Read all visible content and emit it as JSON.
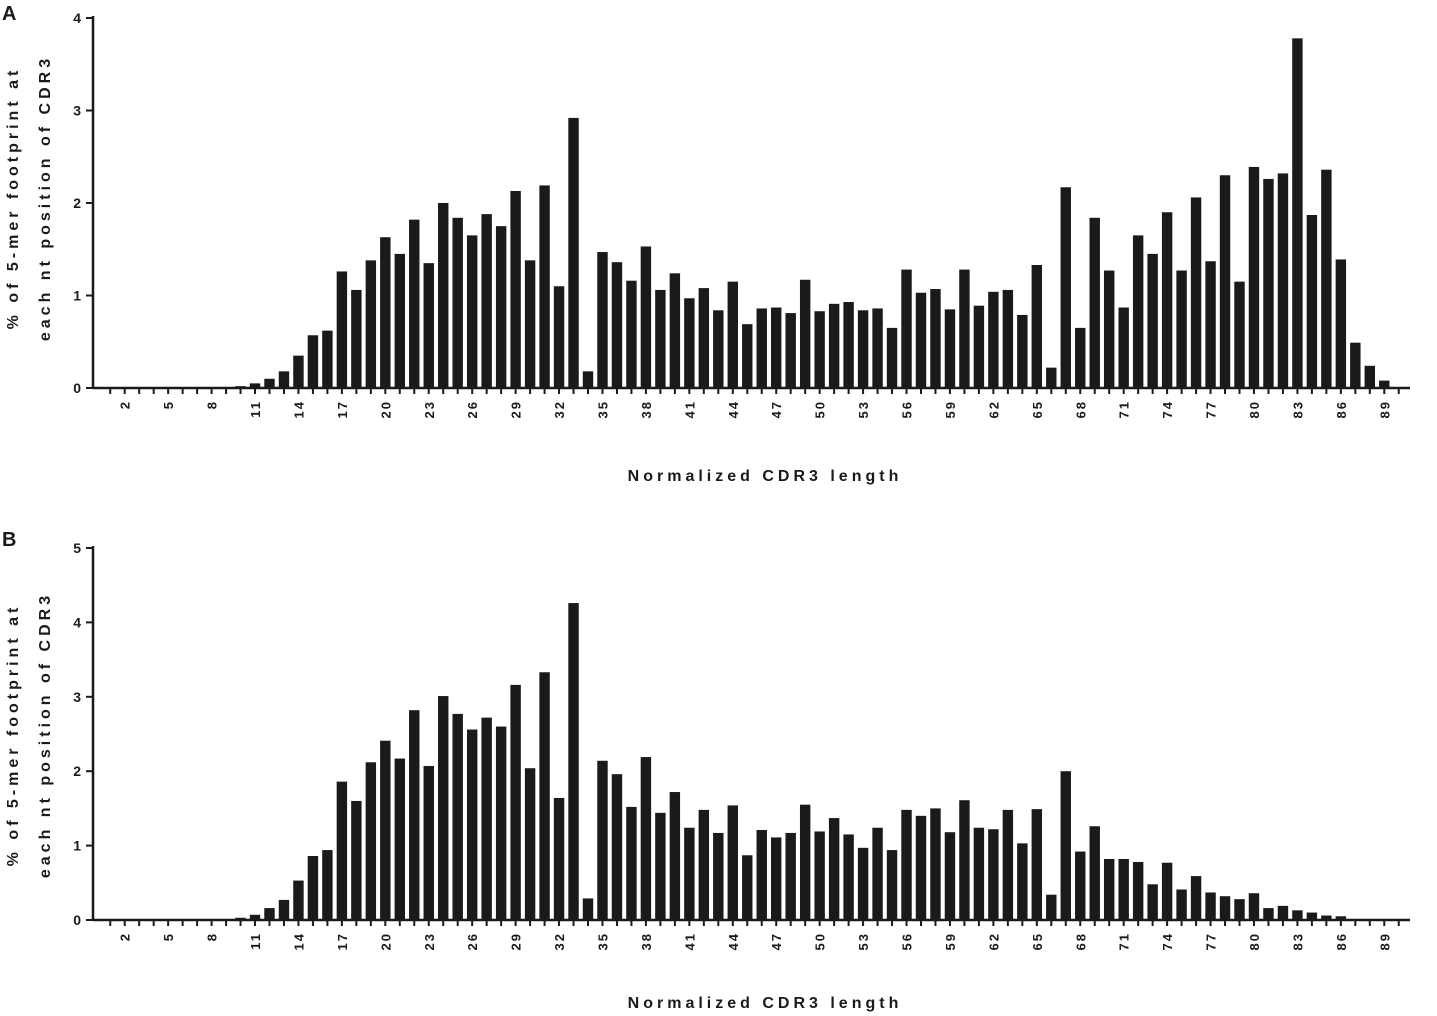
{
  "chart_data": [
    {
      "panel": "A",
      "type": "bar",
      "xlabel": "Normalized CDR3 length",
      "ylabel_lines": [
        "% of 5-mer footprint at",
        "each nt position of CDR3"
      ],
      "ylim": [
        0,
        4
      ],
      "yticks": [
        0,
        1,
        2,
        3,
        4
      ],
      "x": [
        1,
        2,
        3,
        4,
        5,
        6,
        7,
        8,
        9,
        10,
        11,
        12,
        13,
        14,
        15,
        16,
        17,
        18,
        19,
        20,
        21,
        22,
        23,
        24,
        25,
        26,
        27,
        28,
        29,
        30,
        31,
        32,
        33,
        34,
        35,
        36,
        37,
        38,
        39,
        40,
        41,
        42,
        43,
        44,
        45,
        46,
        47,
        48,
        49,
        50,
        51,
        52,
        53,
        54,
        55,
        56,
        57,
        58,
        59,
        60,
        61,
        62,
        63,
        64,
        65,
        66,
        67,
        68,
        69,
        70,
        71,
        72,
        73,
        74,
        75,
        76,
        77,
        78,
        79,
        80,
        81,
        82,
        83,
        84,
        85,
        86,
        87,
        88,
        89,
        90
      ],
      "xtick_labels": [
        "2",
        "5",
        "8",
        "11",
        "14",
        "17",
        "20",
        "23",
        "26",
        "29",
        "32",
        "35",
        "38",
        "41",
        "44",
        "47",
        "50",
        "53",
        "56",
        "59",
        "62",
        "65",
        "68",
        "71",
        "74",
        "77",
        "80",
        "83",
        "86",
        "89"
      ],
      "values": [
        0,
        0,
        0,
        0,
        0,
        0,
        0,
        0,
        0,
        0.02,
        0.05,
        0.1,
        0.18,
        0.35,
        0.57,
        0.62,
        1.26,
        1.06,
        1.38,
        1.63,
        1.45,
        1.82,
        1.35,
        2.0,
        1.84,
        1.65,
        1.88,
        1.75,
        2.13,
        1.38,
        2.19,
        1.1,
        2.92,
        0.18,
        1.47,
        1.36,
        1.16,
        1.53,
        1.06,
        1.24,
        0.97,
        1.08,
        0.84,
        1.15,
        0.69,
        0.86,
        0.87,
        0.81,
        1.17,
        0.83,
        0.91,
        0.93,
        0.84,
        0.86,
        0.65,
        1.28,
        1.03,
        1.07,
        0.85,
        1.28,
        0.89,
        1.04,
        1.06,
        0.79,
        1.33,
        0.22,
        2.17,
        0.65,
        1.84,
        1.27,
        0.87,
        1.65,
        1.45,
        1.9,
        1.27,
        2.06,
        1.37,
        2.3,
        1.15,
        2.39,
        2.26,
        2.32,
        3.78,
        1.87,
        2.36,
        1.39,
        0.49,
        0.24,
        0.08,
        0
      ]
    },
    {
      "panel": "B",
      "type": "bar",
      "xlabel": "Normalized CDR3 length",
      "ylabel_lines": [
        "% of 5-mer footprint at",
        "each nt position of CDR3"
      ],
      "ylim": [
        0,
        5
      ],
      "yticks": [
        0,
        1,
        2,
        3,
        4,
        5
      ],
      "x": [
        1,
        2,
        3,
        4,
        5,
        6,
        7,
        8,
        9,
        10,
        11,
        12,
        13,
        14,
        15,
        16,
        17,
        18,
        19,
        20,
        21,
        22,
        23,
        24,
        25,
        26,
        27,
        28,
        29,
        30,
        31,
        32,
        33,
        34,
        35,
        36,
        37,
        38,
        39,
        40,
        41,
        42,
        43,
        44,
        45,
        46,
        47,
        48,
        49,
        50,
        51,
        52,
        53,
        54,
        55,
        56,
        57,
        58,
        59,
        60,
        61,
        62,
        63,
        64,
        65,
        66,
        67,
        68,
        69,
        70,
        71,
        72,
        73,
        74,
        75,
        76,
        77,
        78,
        79,
        80,
        81,
        82,
        83,
        84,
        85,
        86,
        87,
        88,
        89,
        90
      ],
      "xtick_labels": [
        "2",
        "5",
        "8",
        "11",
        "14",
        "17",
        "20",
        "23",
        "26",
        "29",
        "32",
        "35",
        "38",
        "41",
        "44",
        "47",
        "50",
        "53",
        "56",
        "59",
        "62",
        "65",
        "68",
        "71",
        "74",
        "77",
        "80",
        "83",
        "86",
        "89"
      ],
      "values": [
        0,
        0,
        0,
        0,
        0,
        0,
        0,
        0,
        0,
        0.03,
        0.07,
        0.16,
        0.27,
        0.53,
        0.86,
        0.94,
        1.86,
        1.6,
        2.12,
        2.41,
        2.17,
        2.82,
        2.07,
        3.01,
        2.77,
        2.56,
        2.72,
        2.6,
        3.16,
        2.04,
        3.33,
        1.64,
        4.26,
        0.29,
        2.14,
        1.96,
        1.52,
        2.19,
        1.44,
        1.72,
        1.24,
        1.48,
        1.17,
        1.54,
        0.87,
        1.21,
        1.11,
        1.17,
        1.55,
        1.19,
        1.37,
        1.15,
        0.97,
        1.24,
        0.94,
        1.48,
        1.4,
        1.5,
        1.18,
        1.61,
        1.24,
        1.22,
        1.48,
        1.03,
        1.49,
        0.34,
        2.0,
        0.92,
        1.26,
        0.82,
        0.82,
        0.78,
        0.48,
        0.77,
        0.41,
        0.59,
        0.37,
        0.32,
        0.28,
        0.36,
        0.16,
        0.19,
        0.13,
        0.1,
        0.06,
        0.05,
        0,
        0,
        0,
        0
      ]
    }
  ]
}
